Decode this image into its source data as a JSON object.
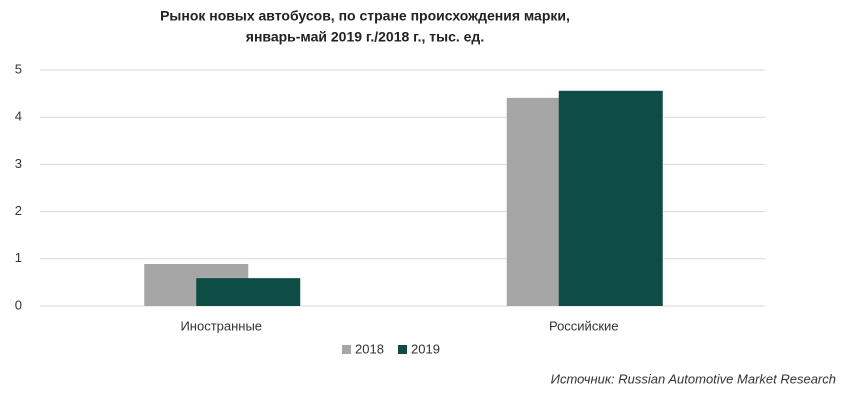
{
  "chart_data": {
    "type": "bar",
    "title": [
      "Рынок новых автобусов, по стране происхождения марки,",
      "январь-май 2019 г./2018 г., тыс. ед."
    ],
    "categories": [
      "Иностранные",
      "Российские"
    ],
    "series": [
      {
        "name": "2018",
        "color": "#a6a6a6",
        "values": [
          0.89,
          4.41
        ]
      },
      {
        "name": "2019",
        "color": "#0e4d45",
        "values": [
          0.59,
          4.56
        ]
      }
    ],
    "ylim": [
      0,
      5
    ],
    "yticks": [
      0,
      1,
      2,
      3,
      4,
      5
    ],
    "grid": true,
    "legend": "bottom",
    "source": "Источник: Russian Automotive Market Research"
  }
}
